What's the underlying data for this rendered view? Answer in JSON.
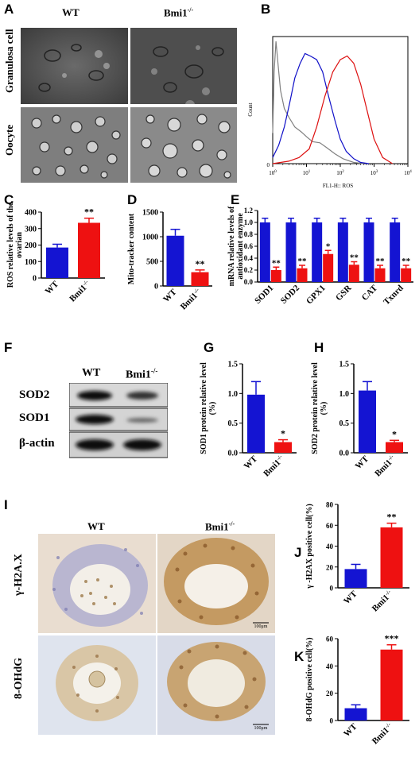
{
  "figure": {
    "panels": {
      "A": {
        "label": "A",
        "col_labels": [
          "WT",
          "Bmi1"
        ],
        "col_sup": [
          "",
          "-/-"
        ],
        "row_labels": [
          "Granulosa cell",
          "Oocyte"
        ]
      },
      "B": {
        "label": "B",
        "ylabel": "Count",
        "xlabel": "FL1-H:: ROS",
        "yticks": [
          "0"
        ],
        "xticks": [
          {
            "base": "10",
            "exp": "0"
          },
          {
            "base": "10",
            "exp": "1"
          },
          {
            "base": "10",
            "exp": "2"
          },
          {
            "base": "10",
            "exp": "3"
          },
          {
            "base": "10",
            "exp": "4"
          }
        ]
      },
      "C": {
        "label": "C"
      },
      "D": {
        "label": "D"
      },
      "E": {
        "label": "E"
      },
      "F": {
        "label": "F",
        "col_labels": [
          "WT",
          "Bmi1"
        ],
        "col_sup": [
          "",
          "-/-"
        ],
        "row_labels": [
          "SOD2",
          "SOD1",
          "β-actin"
        ]
      },
      "G": {
        "label": "G"
      },
      "H": {
        "label": "H"
      },
      "I": {
        "label": "I",
        "col_labels": [
          "WT",
          "Bmi1"
        ],
        "col_sup": [
          "",
          "-/-"
        ],
        "row_labels": [
          "γ-H2A.X",
          "8-OHdG"
        ],
        "scale_bars": [
          "100μm",
          "100μm"
        ]
      },
      "J": {
        "label": "J"
      },
      "K": {
        "label": "K"
      }
    }
  },
  "chart_data": [
    {
      "id": "C",
      "type": "bar",
      "ylabel": "ROS relative levels of the ovarian",
      "categories": [
        "WT",
        "Bmi1"
      ],
      "category_sup": [
        "",
        "-/-"
      ],
      "values": [
        185,
        335
      ],
      "errors": [
        20,
        28
      ],
      "colors": [
        "#1414d2",
        "#ee1111"
      ],
      "yticks": [
        0,
        100,
        200,
        300,
        400
      ],
      "ylim": [
        0,
        400
      ],
      "annotations": [
        "",
        "**"
      ]
    },
    {
      "id": "D",
      "type": "bar",
      "ylabel": "Mito-tracker content",
      "categories": [
        "WT",
        "Bmi1"
      ],
      "category_sup": [
        "",
        "-/-"
      ],
      "values": [
        1020,
        280
      ],
      "errors": [
        130,
        45
      ],
      "colors": [
        "#1414d2",
        "#ee1111"
      ],
      "yticks": [
        0,
        500,
        1000,
        1500
      ],
      "ylim": [
        0,
        1500
      ],
      "annotations": [
        "",
        "**"
      ]
    },
    {
      "id": "E",
      "type": "bar",
      "ylabel": "mRNA relative levels of antioxidant enzyme",
      "categories": [
        "SOD1",
        "SOD2",
        "GPX1",
        "GSR",
        "CAT",
        "Txnrd"
      ],
      "series": [
        {
          "values": [
            1.0,
            1.0,
            1.0,
            1.0,
            1.0,
            1.0
          ],
          "errors": [
            0.07,
            0.07,
            0.07,
            0.07,
            0.07,
            0.07
          ],
          "color": "#1414d2"
        },
        {
          "values": [
            0.2,
            0.23,
            0.47,
            0.29,
            0.23,
            0.23
          ],
          "errors": [
            0.05,
            0.05,
            0.06,
            0.05,
            0.05,
            0.05
          ],
          "color": "#ee1111"
        }
      ],
      "yticks": [
        "0.0",
        "0.2",
        "0.4",
        "0.6",
        "0.8",
        "1.0",
        "1.2"
      ],
      "ylim": [
        0,
        1.2
      ],
      "annotations": [
        "**",
        "**",
        "*",
        "**",
        "**",
        "**"
      ]
    },
    {
      "id": "G",
      "type": "bar",
      "ylabel": "SOD1 protein relative level (%)",
      "categories": [
        "WT",
        "Bmi1"
      ],
      "category_sup": [
        "",
        "-/-"
      ],
      "values": [
        0.98,
        0.18
      ],
      "errors": [
        0.22,
        0.04
      ],
      "colors": [
        "#1414d2",
        "#ee1111"
      ],
      "yticks": [
        "0.0",
        "0.5",
        "1.0",
        "1.5"
      ],
      "ylim": [
        0,
        1.5
      ],
      "annotations": [
        "",
        "*"
      ]
    },
    {
      "id": "H",
      "type": "bar",
      "ylabel": "SOD2 protein relative level (%)",
      "categories": [
        "WT",
        "Bmi1"
      ],
      "category_sup": [
        "",
        "-/-"
      ],
      "values": [
        1.05,
        0.18
      ],
      "errors": [
        0.15,
        0.03
      ],
      "colors": [
        "#1414d2",
        "#ee1111"
      ],
      "yticks": [
        "0.0",
        "0.5",
        "1.0",
        "1.5"
      ],
      "ylim": [
        0,
        1.5
      ],
      "annotations": [
        "",
        "*"
      ]
    },
    {
      "id": "J",
      "type": "bar",
      "ylabel": "γ -H2AX positive cell(%)",
      "categories": [
        "WT",
        "Bmi1"
      ],
      "category_sup": [
        "",
        "-/-"
      ],
      "values": [
        18,
        58
      ],
      "errors": [
        4.5,
        4
      ],
      "colors": [
        "#1414d2",
        "#ee1111"
      ],
      "yticks": [
        0,
        20,
        40,
        60,
        80
      ],
      "ylim": [
        0,
        80
      ],
      "annotations": [
        "",
        "**"
      ]
    },
    {
      "id": "K",
      "type": "bar",
      "ylabel": "8-OHdG positive cell(%)",
      "categories": [
        "WT",
        "Bmi1"
      ],
      "category_sup": [
        "",
        "-/-"
      ],
      "values": [
        9,
        52
      ],
      "errors": [
        2.5,
        3.5
      ],
      "colors": [
        "#1414d2",
        "#ee1111"
      ],
      "yticks": [
        0,
        20,
        40,
        60
      ],
      "ylim": [
        0,
        60
      ],
      "annotations": [
        "",
        "***"
      ]
    },
    {
      "id": "B",
      "type": "line",
      "xscale": "log",
      "xlim": [
        1,
        10000
      ],
      "series": [
        {
          "color": "#808080",
          "x": [
            1,
            1.1,
            1.25,
            1.45,
            1.7,
            2.2,
            3,
            4.5,
            7,
            10,
            15,
            25,
            40,
            70,
            120,
            250,
            500
          ],
          "y": [
            0.25,
            0.75,
            1.0,
            0.8,
            0.6,
            0.45,
            0.38,
            0.3,
            0.26,
            0.22,
            0.18,
            0.17,
            0.13,
            0.08,
            0.04,
            0.01,
            0
          ]
        },
        {
          "color": "#1010c8",
          "x": [
            1,
            1.5,
            2.2,
            3.2,
            4.5,
            6.5,
            9,
            13,
            20,
            30,
            45,
            70,
            100,
            150,
            250,
            400,
            700
          ],
          "y": [
            0.05,
            0.15,
            0.3,
            0.5,
            0.7,
            0.82,
            0.9,
            0.88,
            0.85,
            0.75,
            0.55,
            0.35,
            0.2,
            0.1,
            0.04,
            0.01,
            0
          ]
        },
        {
          "color": "#dd1010",
          "x": [
            1,
            3,
            6,
            12,
            20,
            35,
            60,
            100,
            160,
            250,
            400,
            600,
            1000,
            1800,
            3500
          ],
          "y": [
            0,
            0.02,
            0.05,
            0.12,
            0.3,
            0.55,
            0.75,
            0.85,
            0.88,
            0.82,
            0.65,
            0.45,
            0.2,
            0.05,
            0
          ]
        }
      ]
    }
  ]
}
